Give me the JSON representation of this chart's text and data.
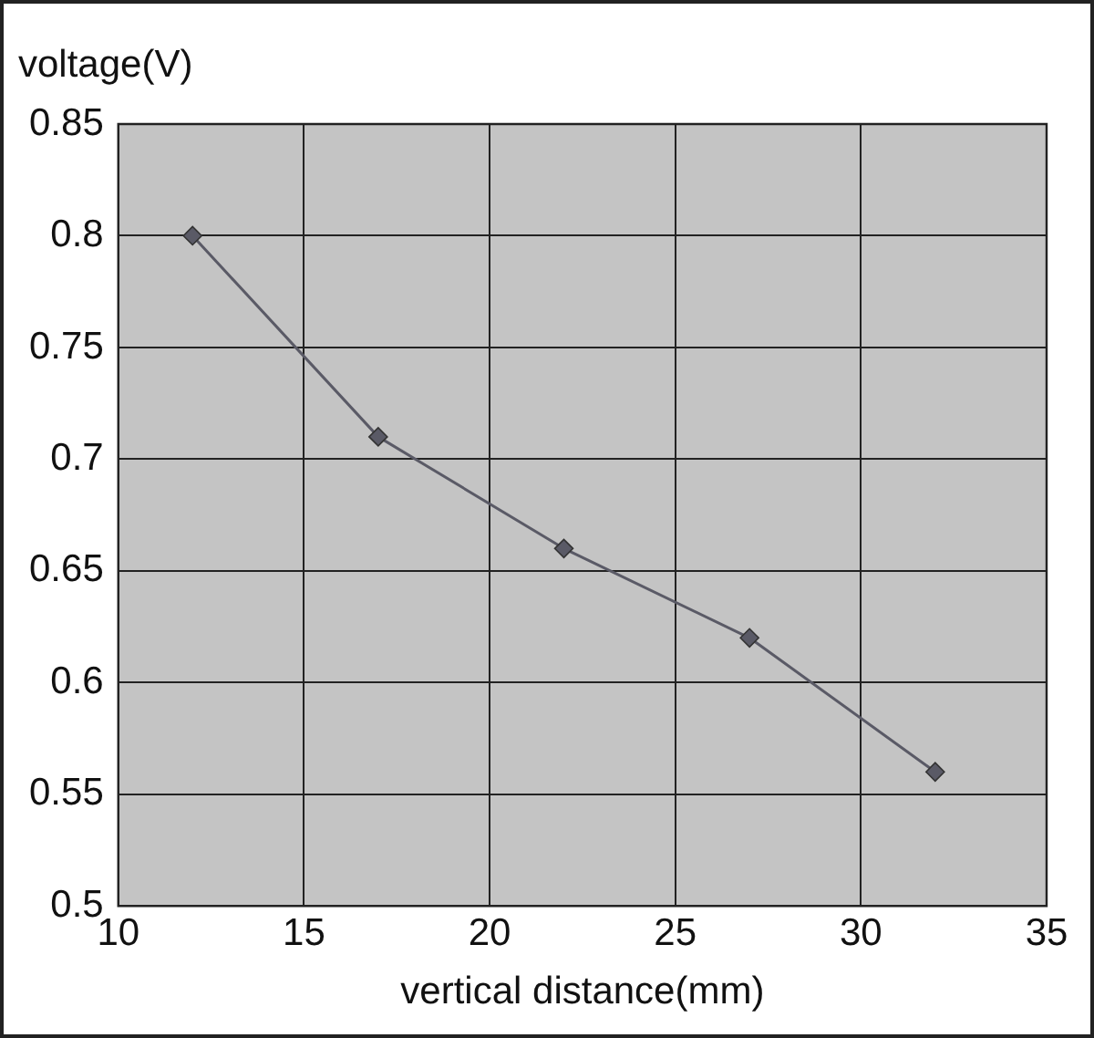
{
  "chart_data": {
    "type": "line",
    "xlabel": "vertical distance(mm)",
    "ylabel": "voltage(V)",
    "x": [
      12,
      17,
      22,
      27,
      32
    ],
    "series": [
      {
        "color": "#5a5a66",
        "values": [
          0.8,
          0.71,
          0.66,
          0.62,
          0.56
        ]
      }
    ],
    "xlim": [
      10,
      35
    ],
    "xticks": [
      10,
      15,
      20,
      25,
      30,
      35
    ],
    "ylim": [
      0.5,
      0.85
    ],
    "yticks": [
      0.5,
      0.55,
      0.6,
      0.65,
      0.7,
      0.75,
      0.8,
      0.85
    ],
    "grid": true,
    "legend": false,
    "marker": "diamond",
    "line_style": "solid"
  }
}
